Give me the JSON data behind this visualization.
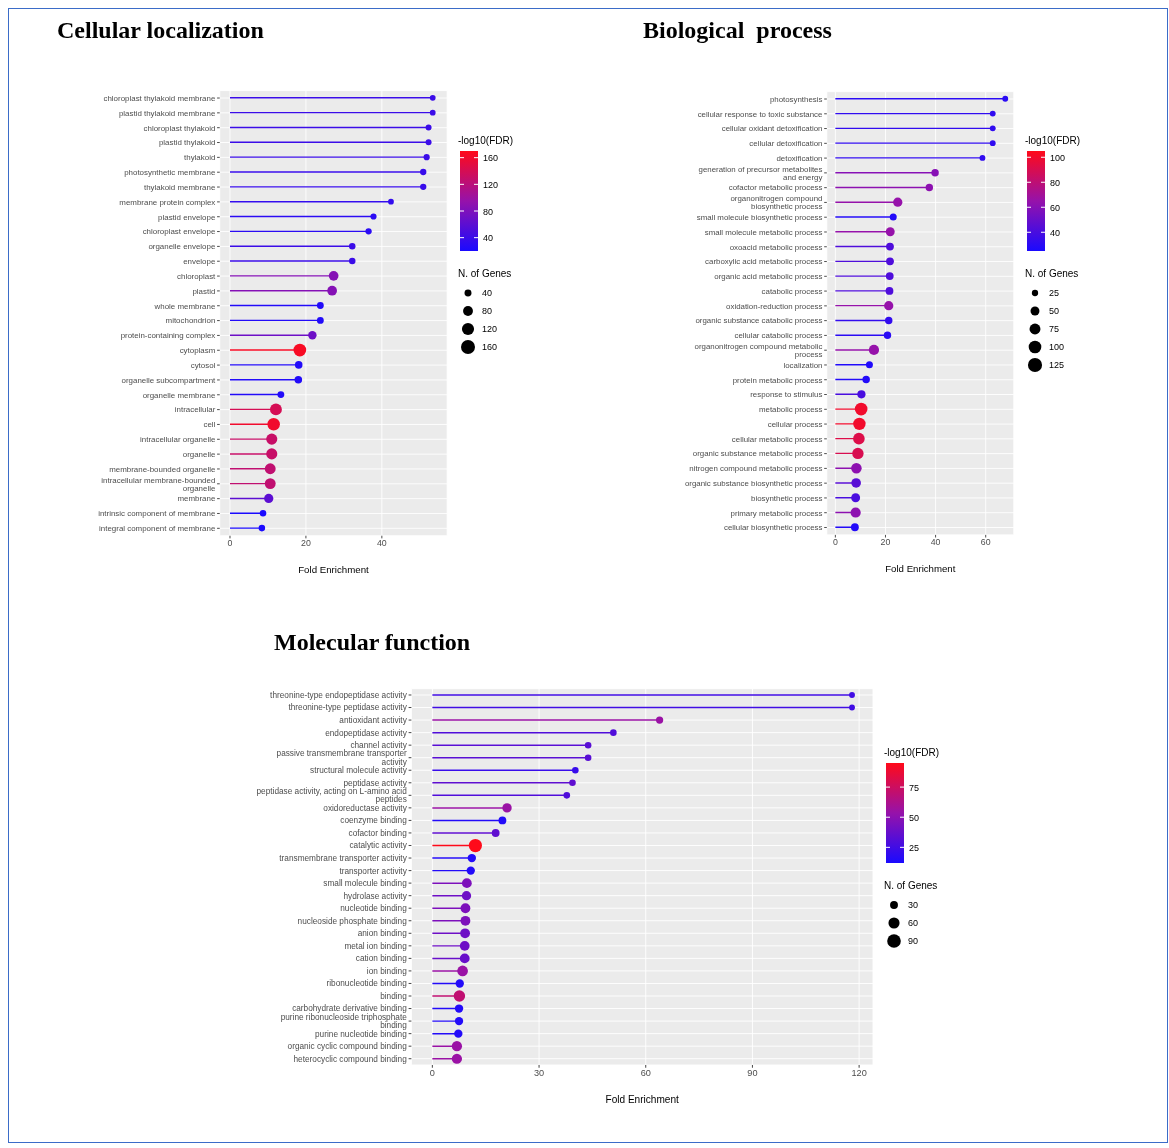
{
  "chart_data": [
    {
      "type": "lollipop",
      "orientation": "horizontal",
      "title": "Cellular localization",
      "xlabel": "Fold Enrichment",
      "clabel": "-log10(FDR)",
      "legend_title": "N. of Genes",
      "grid": true,
      "categories": [
        "chloroplast thylakoid membrane",
        "plastid thylakoid membrane",
        "chloroplast thylakoid",
        "plastid thylakoid",
        "thylakoid",
        "photosynthetic membrane",
        "thylakoid membrane",
        "membrane protein complex",
        "plastid envelope",
        "chloroplast envelope",
        "organelle envelope",
        "envelope",
        "chloroplast",
        "plastid",
        "whole membrane",
        "mitochondrion",
        "protein-containing complex",
        "cytoplasm",
        "cytosol",
        "organelle subcompartment",
        "organelle membrane",
        "intracellular",
        "cell",
        "intracellular organelle",
        "organelle",
        "membrane-bounded organelle",
        "intracellular membrane-bounded organelle",
        "membrane",
        "intrinsic component of membrane",
        "integral component of membrane"
      ],
      "values": [
        53.4,
        53.4,
        52.3,
        52.3,
        51.8,
        50.9,
        50.9,
        42.4,
        37.8,
        36.5,
        32.2,
        32.2,
        27.3,
        26.9,
        23.8,
        23.8,
        21.7,
        18.4,
        18.1,
        18.0,
        13.4,
        12.1,
        11.5,
        11.0,
        11.0,
        10.6,
        10.6,
        10.2,
        8.7,
        8.4
      ],
      "cvalues": [
        40,
        40,
        40,
        40,
        40,
        38,
        38,
        35,
        30,
        30,
        40,
        40,
        85,
        85,
        25,
        25,
        70,
        165,
        25,
        25,
        25,
        140,
        160,
        130,
        130,
        125,
        125,
        60,
        20,
        20
      ],
      "sizes": [
        35,
        35,
        38,
        38,
        40,
        42,
        42,
        35,
        40,
        42,
        45,
        45,
        100,
        100,
        50,
        50,
        75,
        170,
        60,
        60,
        50,
        150,
        165,
        130,
        130,
        125,
        125,
        90,
        45,
        45
      ],
      "xlim": [
        -2.7,
        57.2
      ],
      "xticks": [
        0,
        20,
        40
      ],
      "clim": [
        20,
        170
      ],
      "cticks": [
        40,
        80,
        120,
        160
      ],
      "size_legend": [
        40,
        80,
        120,
        160
      ]
    },
    {
      "type": "lollipop",
      "orientation": "horizontal",
      "title": "Biological  process",
      "xlabel": "Fold Enrichment",
      "clabel": "-log10(FDR)",
      "legend_title": "N. of Genes",
      "grid": true,
      "categories": [
        "photosynthesis",
        "cellular response to toxic substance",
        "cellular oxidant detoxification",
        "cellular detoxification",
        "detoxification",
        "generation of precursor metabolites and energy",
        "cofactor metabolic process",
        "organonitrogen compound biosynthetic process",
        "small molecule biosynthetic process",
        "small molecule metabolic process",
        "oxoacid metabolic process",
        "carboxylic acid metabolic process",
        "organic acid metabolic process",
        "catabolic process",
        "oxidation-reduction process",
        "organic substance catabolic process",
        "cellular catabolic process",
        "organonitrogen compound metabolic process",
        "localization",
        "protein metabolic process",
        "response to stimulus",
        "metabolic process",
        "cellular process",
        "cellular metabolic process",
        "organic substance metabolic process",
        "nitrogen compound metabolic process",
        "organic substance biosynthetic process",
        "biosynthetic process",
        "primary metabolic process",
        "cellular biosynthetic process"
      ],
      "values": [
        67.8,
        62.8,
        62.8,
        62.8,
        58.7,
        39.8,
        37.5,
        24.9,
        23.1,
        21.9,
        21.8,
        21.8,
        21.7,
        21.6,
        21.3,
        21.3,
        20.8,
        15.4,
        13.6,
        12.3,
        10.4,
        10.3,
        9.6,
        9.4,
        9.0,
        8.4,
        8.3,
        8.1,
        8.1,
        7.8
      ],
      "cvalues": [
        30,
        32,
        32,
        32,
        32,
        60,
        62,
        65,
        28,
        65,
        42,
        42,
        42,
        42,
        65,
        33,
        30,
        65,
        27,
        28,
        40,
        100,
        100,
        92,
        90,
        62,
        45,
        40,
        62,
        28
      ],
      "sizes": [
        28,
        28,
        28,
        28,
        28,
        45,
        45,
        70,
        40,
        65,
        50,
        50,
        50,
        50,
        70,
        45,
        45,
        85,
        40,
        45,
        55,
        130,
        125,
        110,
        105,
        90,
        75,
        65,
        85,
        50
      ],
      "xlim": [
        -3.4,
        71.2
      ],
      "xticks": [
        0,
        20,
        40,
        60
      ],
      "clim": [
        25,
        105
      ],
      "cticks": [
        40,
        60,
        80,
        100
      ],
      "size_legend": [
        25,
        50,
        75,
        100,
        125
      ]
    },
    {
      "type": "lollipop",
      "orientation": "horizontal",
      "title": "Molecular function",
      "xlabel": "Fold Enrichment",
      "clabel": "-log10(FDR)",
      "legend_title": "N. of Genes",
      "grid": true,
      "categories": [
        "threonine-type endopeptidase activity",
        "threonine-type peptidase activity",
        "antioxidant activity",
        "endopeptidase activity",
        "channel activity",
        "passive transmembrane transporter activity",
        "structural molecule activity",
        "peptidase activity",
        "peptidase activity, acting on L-amino acid peptides",
        "oxidoreductase activity",
        "coenzyme binding",
        "cofactor binding",
        "catalytic activity",
        "transmembrane transporter activity",
        "transporter activity",
        "small molecule binding",
        "hydrolase activity",
        "nucleotide binding",
        "nucleoside phosphate binding",
        "anion binding",
        "metal ion binding",
        "cation binding",
        "ion binding",
        "ribonucleotide binding",
        "binding",
        "carbohydrate derivative binding",
        "purine ribonucleoside triphosphate binding",
        "purine nucleotide binding",
        "organic cyclic compound binding",
        "heterocyclic compound binding"
      ],
      "values": [
        118,
        118,
        63.9,
        50.9,
        43.8,
        43.8,
        40.2,
        39.4,
        37.8,
        21.0,
        19.7,
        17.8,
        12.1,
        11.1,
        10.8,
        9.7,
        9.6,
        9.3,
        9.3,
        9.2,
        9.1,
        9.1,
        8.5,
        7.7,
        7.6,
        7.5,
        7.5,
        7.3,
        6.9,
        6.9
      ],
      "cvalues": [
        25,
        25,
        55,
        30,
        33,
        33,
        22,
        35,
        30,
        55,
        15,
        35,
        95,
        15,
        15,
        45,
        40,
        45,
        45,
        40,
        40,
        38,
        55,
        15,
        70,
        15,
        15,
        15,
        55,
        55
      ],
      "sizes": [
        20,
        20,
        30,
        25,
        25,
        25,
        25,
        25,
        25,
        50,
        35,
        35,
        100,
        40,
        40,
        55,
        50,
        55,
        55,
        55,
        55,
        55,
        65,
        40,
        75,
        40,
        40,
        40,
        60,
        60
      ],
      "xlim": [
        -5.9,
        123.9
      ],
      "xticks": [
        0,
        30,
        60,
        90,
        120
      ],
      "clim": [
        12,
        95
      ],
      "cticks": [
        25,
        50,
        75
      ],
      "size_legend": [
        30,
        60,
        90
      ]
    }
  ]
}
